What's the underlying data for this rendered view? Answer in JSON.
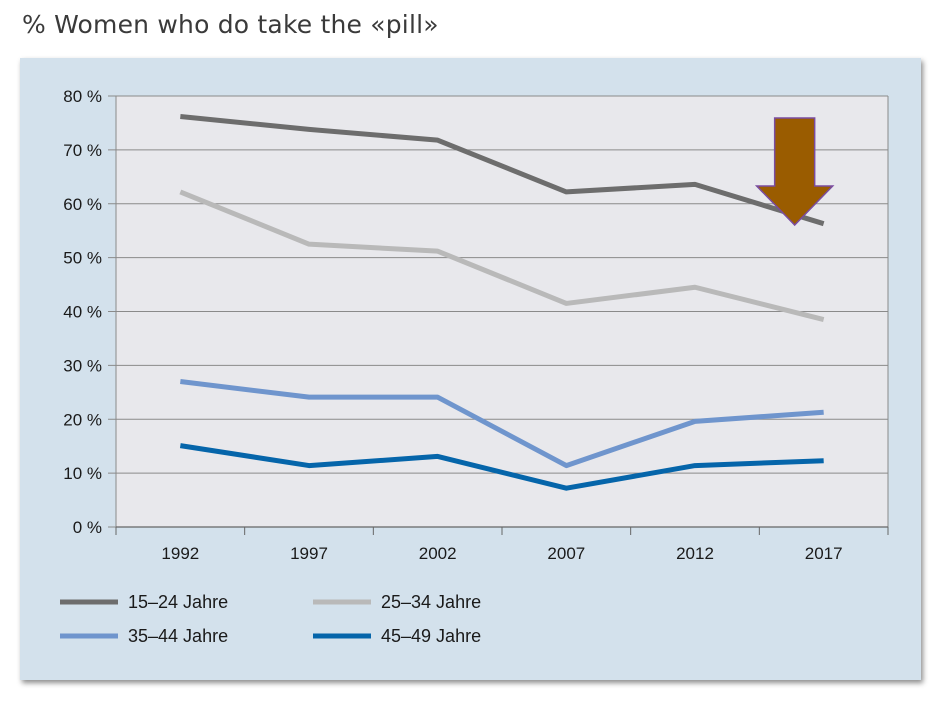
{
  "page": {
    "title": "% Women who do take the «pill»"
  },
  "colors": {
    "panel_bg": "#d3e1ec",
    "plot_bg": "#e8e8ec",
    "grid": "#8a8a8a",
    "arrow_fill": "#9a5c00",
    "arrow_stroke": "#7a4ca0"
  },
  "chart_data": {
    "type": "line",
    "title": "% Women who do take the «pill»",
    "xlabel": "",
    "ylabel": "",
    "x": [
      "1992",
      "1997",
      "2002",
      "2007",
      "2012",
      "2017"
    ],
    "ylim": [
      0,
      80
    ],
    "yticks": [
      0,
      10,
      20,
      30,
      40,
      50,
      60,
      70,
      80
    ],
    "ytick_labels": [
      "0 %",
      "10 %",
      "20 %",
      "30 %",
      "40 %",
      "50 %",
      "60 %",
      "70 %",
      "80 %"
    ],
    "grid": true,
    "legend_position": "bottom",
    "series": [
      {
        "name": "15–24 Jahre",
        "color": "#6d6d6d",
        "values": [
          76.2,
          73.8,
          71.8,
          62.2,
          63.6,
          56.3
        ]
      },
      {
        "name": "25–34 Jahre",
        "color": "#b9b9b9",
        "values": [
          62.2,
          52.5,
          51.2,
          41.5,
          44.5,
          38.5
        ]
      },
      {
        "name": "35–44 Jahre",
        "color": "#6f95cd",
        "values": [
          27.0,
          24.1,
          24.1,
          11.4,
          19.6,
          21.3
        ]
      },
      {
        "name": "45–49 Jahre",
        "color": "#0565aa",
        "values": [
          15.1,
          11.4,
          13.1,
          7.2,
          11.4,
          12.3
        ]
      }
    ],
    "annotation": {
      "type": "down-arrow",
      "near_x": "2017",
      "meaning": "decline"
    }
  }
}
